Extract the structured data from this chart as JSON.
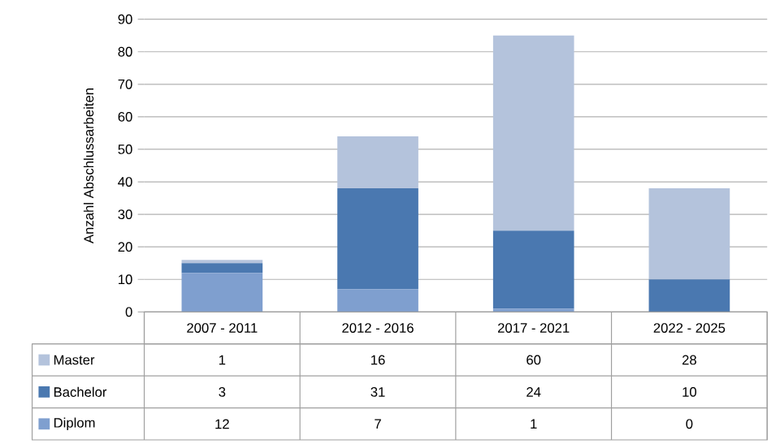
{
  "chart_data": {
    "type": "bar",
    "stacked": true,
    "ylabel": "Anzahl Abschlussarbeiten",
    "categories": [
      "2007 - 2011",
      "2012 - 2016",
      "2017 - 2021",
      "2022 - 2025"
    ],
    "series": [
      {
        "name": "Diplom",
        "color": "#7f9fcf",
        "values": [
          12,
          7,
          1,
          0
        ]
      },
      {
        "name": "Bachelor",
        "color": "#4a78b0",
        "values": [
          3,
          31,
          24,
          10
        ]
      },
      {
        "name": "Master",
        "color": "#b4c3dc",
        "values": [
          1,
          16,
          60,
          28
        ]
      }
    ],
    "ylim": [
      0,
      90
    ],
    "yticks": [
      0,
      10,
      20,
      30,
      40,
      50,
      60,
      70,
      80,
      90
    ],
    "grid": "y",
    "legend": "bottom",
    "data_labels": true
  }
}
